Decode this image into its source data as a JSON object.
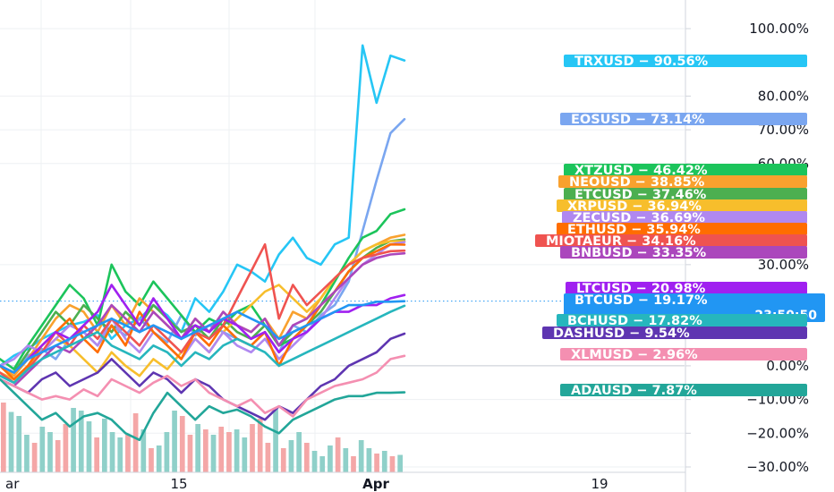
{
  "chart_data": {
    "type": "line",
    "x_ticks": [
      "ar",
      "15",
      "Apr",
      "19"
    ],
    "y_ticks": [
      "100.00%",
      "80.00%",
      "70.00%",
      "60.00%",
      "30.00%",
      "0.00%",
      "−10.00%",
      "−20.00%",
      "−30.00%"
    ],
    "y_tick_values": [
      100,
      80,
      70,
      60,
      30,
      0,
      -10,
      -20,
      -30
    ],
    "ylim": [
      -33,
      104
    ],
    "grid": true,
    "n_points": 30,
    "series": [
      {
        "name": "TRXUSD",
        "label": "TRXUSD − 90.56%",
        "value": 90.56,
        "color": "#26c6f5",
        "values": [
          0,
          3,
          5,
          8,
          10,
          12,
          13,
          15,
          8,
          12,
          14,
          18,
          15,
          10,
          20,
          16,
          22,
          30,
          28,
          25,
          33,
          38,
          32,
          30,
          36,
          38,
          95,
          78,
          92,
          90.56
        ]
      },
      {
        "name": "EOSUSD",
        "label": "EOSUSD − 73.14%",
        "value": 73.14,
        "color": "#7aa6f0",
        "values": [
          0,
          -2,
          3,
          5,
          2,
          8,
          10,
          6,
          12,
          9,
          14,
          10,
          7,
          15,
          9,
          12,
          10,
          8,
          6,
          10,
          4,
          12,
          10,
          15,
          18,
          25,
          40,
          55,
          69,
          73.14
        ]
      },
      {
        "name": "XTZUSD",
        "label": "XTZUSD − 46.42%",
        "value": 46.42,
        "color": "#1cc45b",
        "values": [
          2,
          -1,
          6,
          12,
          18,
          24,
          20,
          12,
          30,
          22,
          18,
          25,
          20,
          15,
          10,
          14,
          12,
          16,
          18,
          12,
          6,
          8,
          12,
          18,
          25,
          32,
          38,
          40,
          45,
          46.42
        ]
      },
      {
        "name": "NEOUSD",
        "label": "NEOUSD − 38.85%",
        "value": 38.85,
        "color": "#f9a12e",
        "values": [
          0,
          -3,
          2,
          8,
          14,
          18,
          16,
          10,
          18,
          12,
          20,
          16,
          12,
          8,
          14,
          10,
          16,
          12,
          10,
          14,
          8,
          16,
          14,
          20,
          26,
          30,
          34,
          36,
          38,
          38.85
        ]
      },
      {
        "name": "ETCUSD",
        "label": "ETCUSD − 37.46%",
        "value": 37.46,
        "color": "#4caf50",
        "values": [
          0,
          -2,
          4,
          10,
          16,
          12,
          18,
          14,
          10,
          16,
          12,
          18,
          14,
          10,
          12,
          8,
          14,
          10,
          8,
          12,
          6,
          10,
          12,
          16,
          22,
          28,
          32,
          35,
          37,
          37.46
        ]
      },
      {
        "name": "XRPUSD",
        "label": "XRPUSD − 36.94%",
        "value": 36.94,
        "color": "#f7be2c",
        "values": [
          -2,
          -4,
          0,
          4,
          8,
          6,
          2,
          -2,
          4,
          0,
          -3,
          2,
          -1,
          4,
          8,
          4,
          10,
          14,
          18,
          22,
          24,
          20,
          16,
          20,
          26,
          30,
          34,
          36,
          37,
          36.94
        ]
      },
      {
        "name": "ZECUSD",
        "label": "ZECUSD − 36.69%",
        "value": 36.69,
        "color": "#b088f0",
        "values": [
          0,
          2,
          6,
          4,
          8,
          12,
          10,
          6,
          14,
          8,
          4,
          10,
          6,
          2,
          8,
          4,
          10,
          6,
          4,
          8,
          2,
          6,
          10,
          14,
          20,
          26,
          30,
          33,
          36,
          36.69
        ]
      },
      {
        "name": "ETHUSD",
        "label": "ETHUSD − 35.94%",
        "value": 35.94,
        "color": "#ff6d00",
        "values": [
          0,
          -4,
          0,
          6,
          10,
          14,
          8,
          4,
          12,
          6,
          16,
          10,
          6,
          2,
          10,
          6,
          12,
          8,
          6,
          10,
          0,
          8,
          12,
          18,
          22,
          28,
          32,
          34,
          36,
          35.94
        ]
      },
      {
        "name": "MIOTAEUR",
        "label": "MIOTAEUR − 34.16%",
        "value": 34.16,
        "color": "#ef5350",
        "values": [
          -2,
          -5,
          -1,
          4,
          10,
          6,
          12,
          8,
          14,
          10,
          6,
          12,
          8,
          4,
          10,
          8,
          12,
          20,
          28,
          36,
          14,
          24,
          18,
          22,
          26,
          30,
          32,
          33,
          34,
          34.16
        ]
      },
      {
        "name": "BNBUSD",
        "label": "BNBUSD − 33.35%",
        "value": 33.35,
        "color": "#ab47bc",
        "values": [
          -4,
          -6,
          -2,
          2,
          6,
          4,
          8,
          12,
          18,
          14,
          10,
          16,
          12,
          8,
          14,
          10,
          16,
          12,
          10,
          14,
          6,
          12,
          14,
          18,
          22,
          26,
          30,
          32,
          33,
          33.35
        ]
      },
      {
        "name": "LTCUSD",
        "label": "LTCUSD − 20.98%",
        "value": 20.98,
        "color": "#a020f0",
        "values": [
          0,
          -2,
          2,
          6,
          10,
          8,
          12,
          16,
          24,
          18,
          12,
          20,
          14,
          8,
          12,
          10,
          14,
          12,
          8,
          10,
          4,
          8,
          10,
          14,
          16,
          16,
          18,
          18,
          20,
          20.98
        ]
      },
      {
        "name": "BTCUSD",
        "label": "BTCUSD − 19.17%",
        "time": "23:50:50",
        "value": 19.17,
        "color": "#2196f3",
        "values": [
          0,
          -2,
          2,
          4,
          6,
          8,
          10,
          12,
          14,
          12,
          10,
          12,
          10,
          8,
          10,
          12,
          14,
          16,
          14,
          12,
          8,
          10,
          12,
          14,
          16,
          18,
          18,
          19,
          19,
          19.17
        ]
      },
      {
        "name": "BCHUSD",
        "label": "BCHUSD − 17.82%",
        "value": 17.82,
        "color": "#26b6bd",
        "values": [
          -3,
          -5,
          -1,
          2,
          4,
          6,
          8,
          10,
          6,
          4,
          2,
          6,
          4,
          0,
          4,
          2,
          6,
          8,
          6,
          4,
          0,
          2,
          4,
          6,
          8,
          10,
          12,
          14,
          16,
          17.82
        ]
      },
      {
        "name": "DASHUSD",
        "label": "DASHUSD − 9.54%",
        "value": 9.54,
        "color": "#5e35b1",
        "values": [
          -4,
          -6,
          -8,
          -4,
          -2,
          -6,
          -4,
          -2,
          2,
          -2,
          -6,
          -2,
          -4,
          -8,
          -4,
          -6,
          -10,
          -12,
          -14,
          -16,
          -12,
          -14,
          -10,
          -6,
          -4,
          0,
          2,
          4,
          8,
          9.54
        ]
      },
      {
        "name": "XLMUSD",
        "label": "XLMUSD − 2.96%",
        "value": 2.96,
        "color": "#f48fb1",
        "values": [
          -4,
          -6,
          -8,
          -10,
          -9,
          -10,
          -7,
          -9,
          -4,
          -6,
          -8,
          -5,
          -3,
          -6,
          -4,
          -8,
          -10,
          -12,
          -10,
          -14,
          -12,
          -15,
          -10,
          -8,
          -6,
          -5,
          -4,
          -2,
          2,
          2.96
        ]
      },
      {
        "name": "ADAUSD",
        "label": "ADAUSD − 7.87%",
        "value": -7.87,
        "color": "#22a699",
        "values": [
          -4,
          -8,
          -12,
          -16,
          -14,
          -18,
          -15,
          -14,
          -16,
          -20,
          -22,
          -14,
          -8,
          -12,
          -16,
          -12,
          -14,
          -13,
          -15,
          -18,
          -20,
          -16,
          -14,
          -12,
          -10,
          -9,
          -9,
          -8,
          -8,
          -7.87
        ]
      }
    ],
    "volume": {
      "values": [
        0.52,
        0.45,
        0.42,
        0.28,
        0.22,
        0.34,
        0.3,
        0.24,
        0.36,
        0.48,
        0.46,
        0.38,
        0.26,
        0.4,
        0.3,
        0.26,
        0.28,
        0.44,
        0.32,
        0.18,
        0.2,
        0.3,
        0.46,
        0.42,
        0.28,
        0.36,
        0.32,
        0.28,
        0.34,
        0.3,
        0.32,
        0.26,
        0.36,
        0.4,
        0.22,
        0.48,
        0.18,
        0.24,
        0.3,
        0.22,
        0.16,
        0.12,
        0.2,
        0.26,
        0.18,
        0.12,
        0.24,
        0.18,
        0.14,
        0.16,
        0.12,
        0.13
      ],
      "colors": [
        "#f4a7a7",
        "#8fd0c9",
        "#8fd0c9",
        "#8fd0c9",
        "#f4a7a7",
        "#8fd0c9",
        "#8fd0c9",
        "#f4a7a7",
        "#f4a7a7",
        "#8fd0c9",
        "#8fd0c9",
        "#8fd0c9",
        "#f4a7a7",
        "#8fd0c9",
        "#8fd0c9",
        "#8fd0c9",
        "#f4a7a7",
        "#f4a7a7",
        "#8fd0c9",
        "#f4a7a7",
        "#8fd0c9",
        "#8fd0c9",
        "#8fd0c9",
        "#f4a7a7",
        "#f4a7a7",
        "#8fd0c9",
        "#f4a7a7",
        "#8fd0c9",
        "#f4a7a7",
        "#f4a7a7",
        "#8fd0c9",
        "#8fd0c9",
        "#f4a7a7",
        "#f4a7a7",
        "#f4a7a7",
        "#8fd0c9",
        "#f4a7a7",
        "#8fd0c9",
        "#8fd0c9",
        "#f4a7a7",
        "#8fd0c9",
        "#8fd0c9",
        "#8fd0c9",
        "#f4a7a7",
        "#8fd0c9",
        "#f4a7a7",
        "#8fd0c9",
        "#8fd0c9",
        "#f4a7a7",
        "#8fd0c9",
        "#f4a7a7",
        "#8fd0c9"
      ]
    },
    "crosshair_value": 19.17
  },
  "colors": {
    "grid": "#eef0f3",
    "axis": "#d1d4dc",
    "zero_line": "#c8ccd4",
    "crosshair": "#2196f3"
  }
}
